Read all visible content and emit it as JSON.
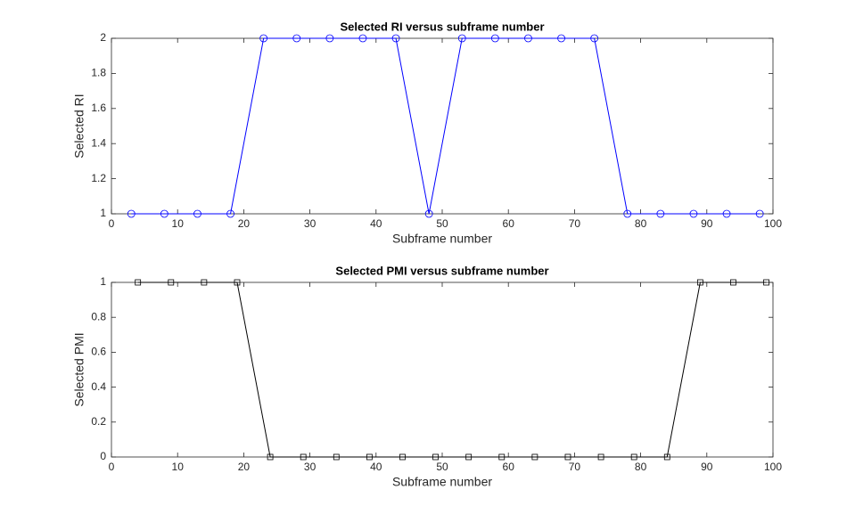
{
  "chart_data": [
    {
      "type": "line",
      "title": "Selected RI versus subframe number",
      "xlabel": "Subframe number",
      "ylabel": "Selected RI",
      "x": [
        3,
        8,
        13,
        18,
        23,
        28,
        33,
        38,
        43,
        48,
        53,
        58,
        63,
        68,
        73,
        78,
        83,
        88,
        93,
        98
      ],
      "series": [
        {
          "color": "#0000ff",
          "marker": "circle",
          "values": [
            1,
            1,
            1,
            1,
            2,
            2,
            2,
            2,
            2,
            1,
            2,
            2,
            2,
            2,
            2,
            1,
            1,
            1,
            1,
            1
          ]
        }
      ],
      "xlim": [
        0,
        100
      ],
      "xticks": [
        0,
        10,
        20,
        30,
        40,
        50,
        60,
        70,
        80,
        90,
        100
      ],
      "ylim": [
        1,
        2
      ],
      "yticks": [
        1,
        1.2,
        1.4,
        1.6,
        1.8,
        2
      ]
    },
    {
      "type": "line",
      "title": "Selected PMI versus subframe number",
      "xlabel": "Subframe number",
      "ylabel": "Selected PMI",
      "x": [
        4,
        9,
        14,
        19,
        24,
        29,
        34,
        39,
        44,
        49,
        54,
        59,
        64,
        69,
        74,
        79,
        84,
        89,
        94,
        99
      ],
      "series": [
        {
          "color": "#000000",
          "marker": "square",
          "values": [
            1,
            1,
            1,
            1,
            0,
            0,
            0,
            0,
            0,
            0,
            0,
            0,
            0,
            0,
            0,
            0,
            0,
            1,
            1,
            1
          ]
        }
      ],
      "xlim": [
        0,
        100
      ],
      "xticks": [
        0,
        10,
        20,
        30,
        40,
        50,
        60,
        70,
        80,
        90,
        100
      ],
      "ylim": [
        0,
        1
      ],
      "yticks": [
        0,
        0.2,
        0.4,
        0.6,
        0.8,
        1
      ]
    }
  ]
}
